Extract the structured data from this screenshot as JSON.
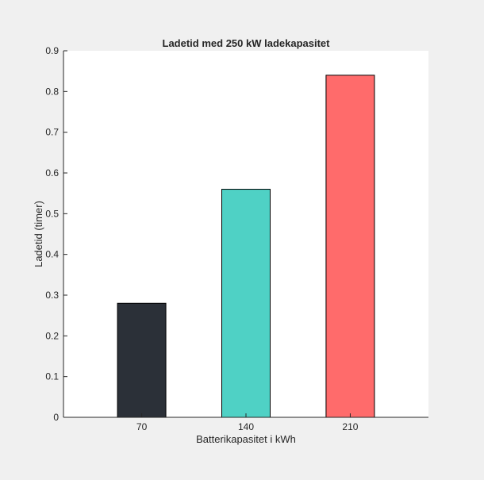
{
  "chart_data": {
    "type": "bar",
    "title": "Ladetid med 250 kW ladekapasitet",
    "xlabel": "Batterikapasitet i kWh",
    "ylabel": "Ladetid (timer)",
    "categories": [
      "70",
      "140",
      "210"
    ],
    "values": [
      0.28,
      0.56,
      0.84
    ],
    "colors": [
      "#2b3038",
      "#4fd1c5",
      "#ff6b6b"
    ],
    "ylim": [
      0,
      0.9
    ],
    "yticks": [
      "0",
      "0.1",
      "0.2",
      "0.3",
      "0.4",
      "0.5",
      "0.6",
      "0.7",
      "0.8",
      "0.9"
    ],
    "grid": false,
    "legend": "none"
  }
}
